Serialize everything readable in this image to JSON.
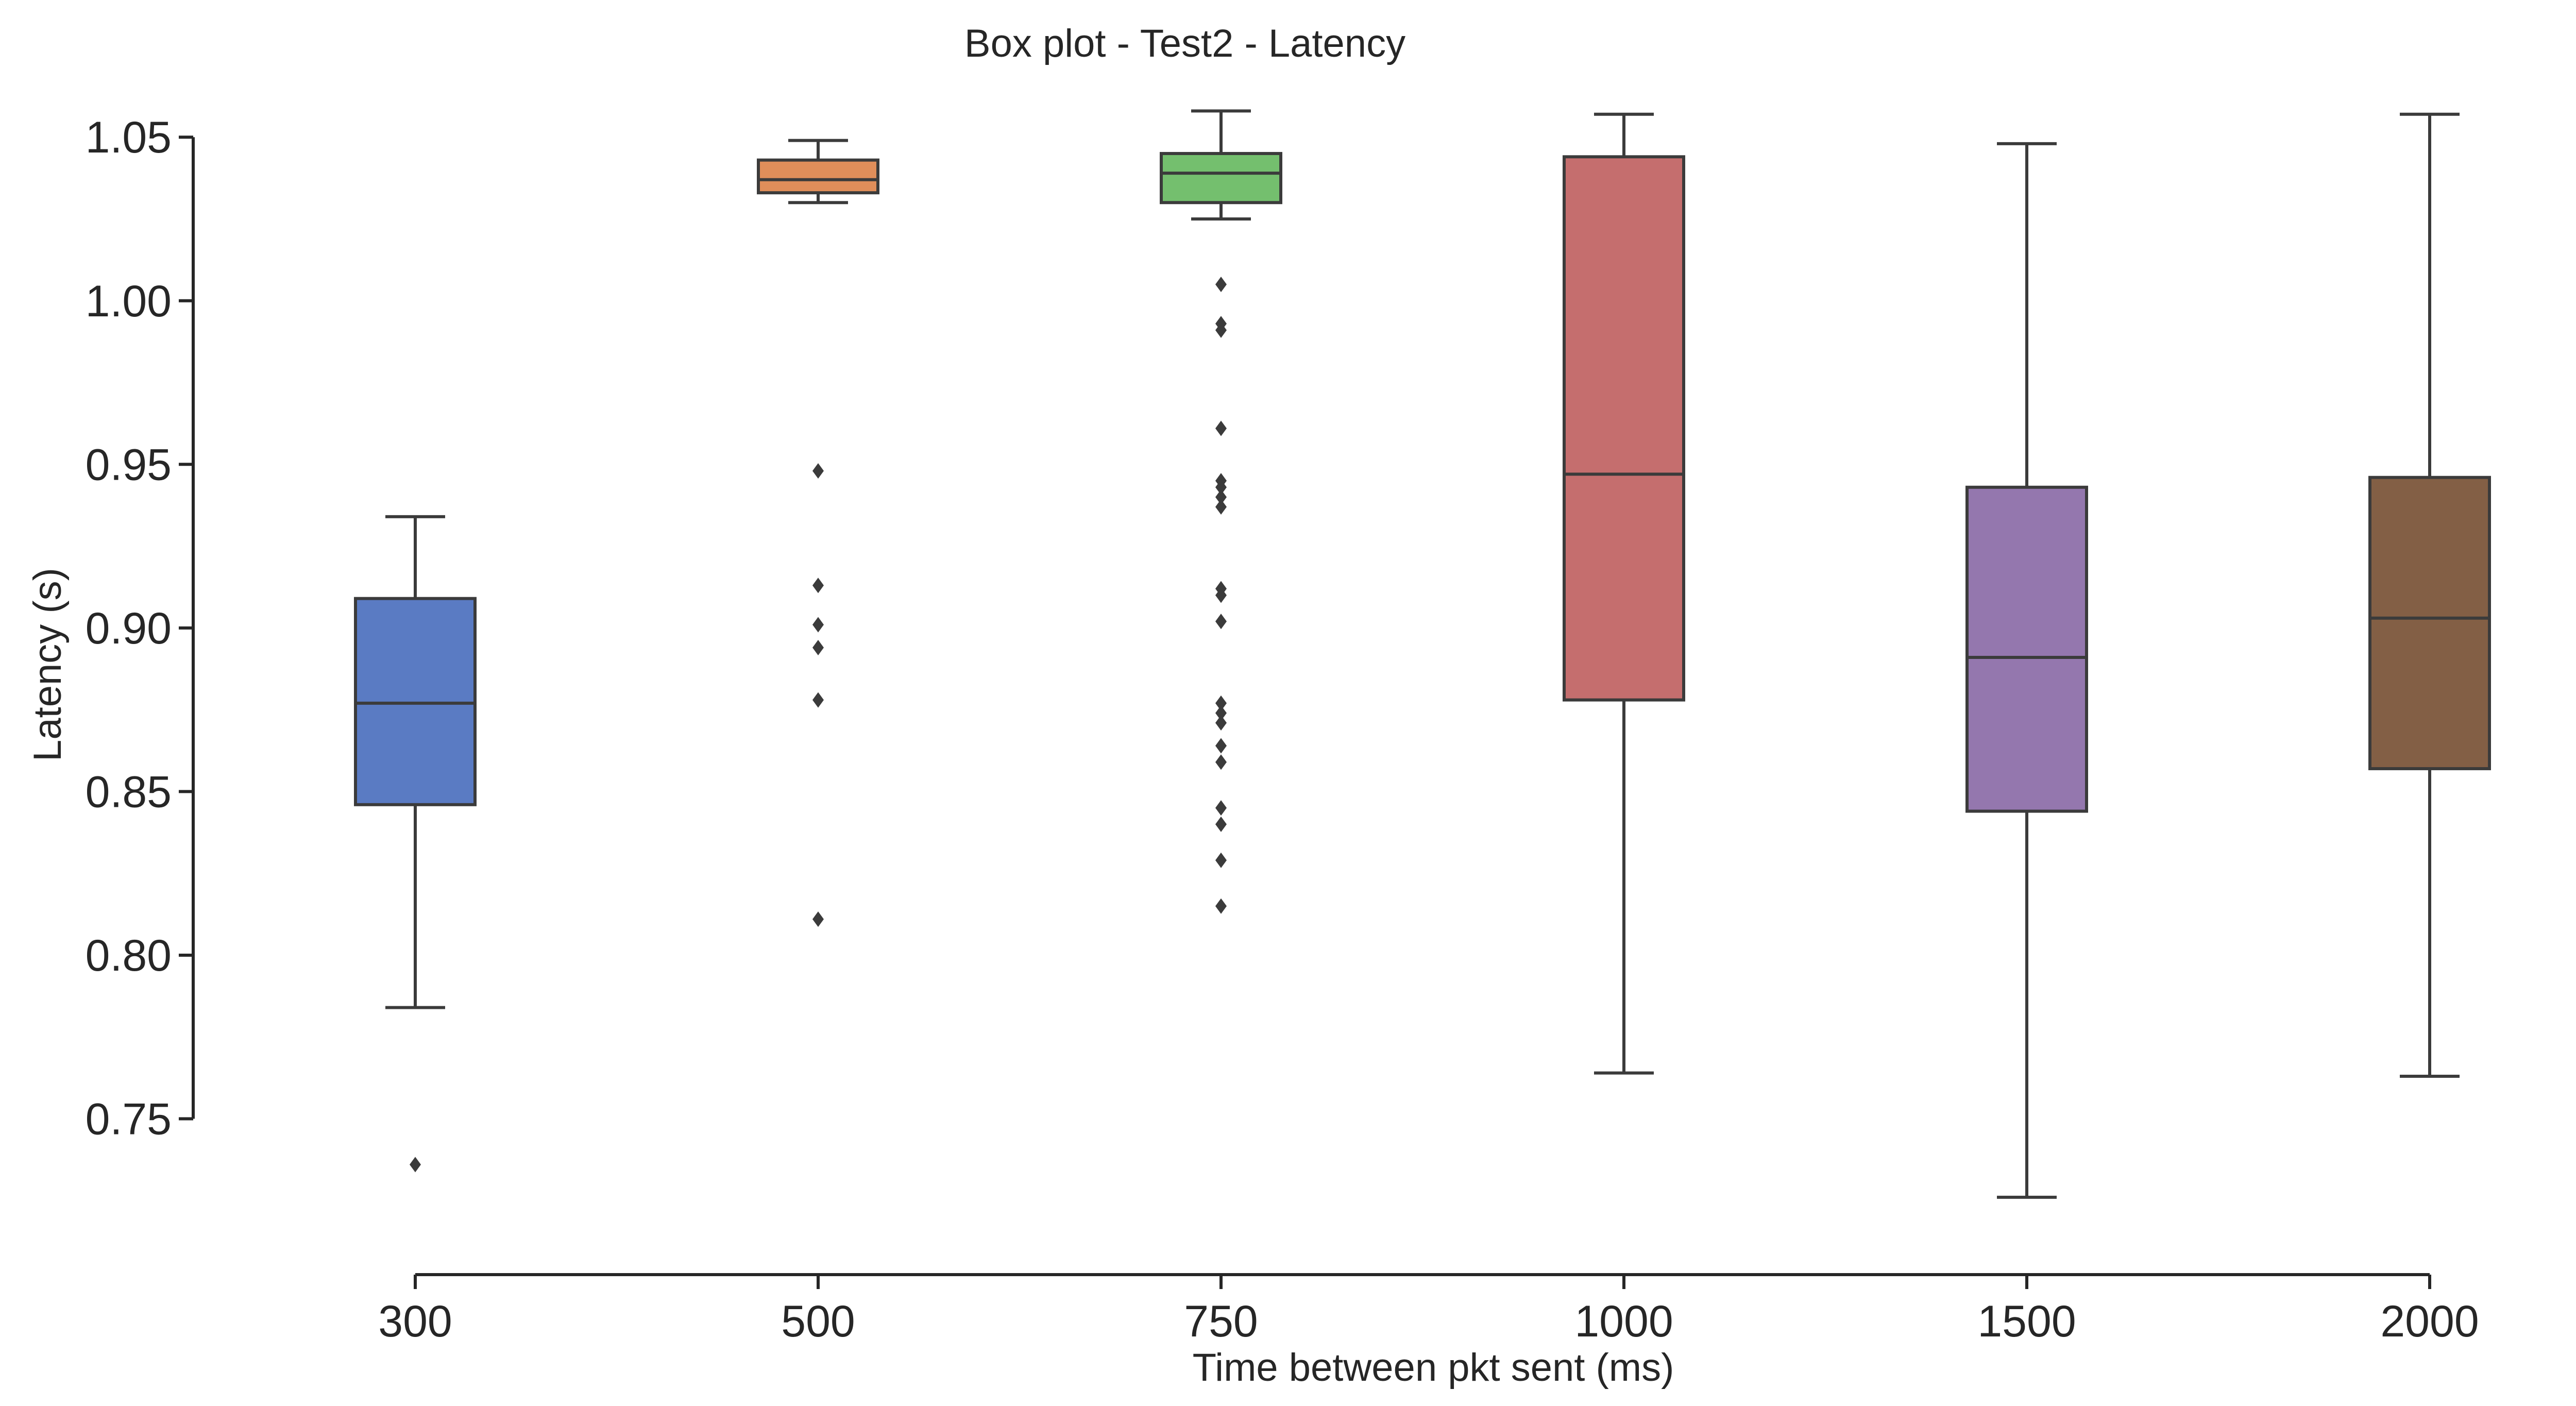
{
  "chart_data": {
    "type": "box",
    "title": "Box plot - Test2 - Latency",
    "xlabel": "Time between pkt sent (ms)",
    "ylabel": "Latency (s)",
    "categories": [
      "300",
      "500",
      "750",
      "1000",
      "1500",
      "2000"
    ],
    "yticks": [
      "0.75",
      "0.80",
      "0.85",
      "0.90",
      "0.95",
      "1.00",
      "1.05"
    ],
    "ytick_values": [
      0.75,
      0.8,
      0.85,
      0.9,
      0.95,
      1.0,
      1.05
    ],
    "ylim": [
      0.703,
      1.062
    ],
    "grid": false,
    "boxes": [
      {
        "category": "300",
        "color": "#5a7bc3",
        "whisker_low": 0.784,
        "q1": 0.846,
        "median": 0.877,
        "q3": 0.909,
        "whisker_high": 0.934,
        "outliers": [
          0.736
        ]
      },
      {
        "category": "500",
        "color": "#e08e5a",
        "whisker_low": 1.03,
        "q1": 1.033,
        "median": 1.037,
        "q3": 1.043,
        "whisker_high": 1.049,
        "outliers": [
          0.948,
          0.913,
          0.901,
          0.894,
          0.878,
          0.811
        ]
      },
      {
        "category": "750",
        "color": "#74bf6e",
        "whisker_low": 1.025,
        "q1": 1.03,
        "median": 1.039,
        "q3": 1.045,
        "whisker_high": 1.058,
        "outliers": [
          1.005,
          0.993,
          0.991,
          0.961,
          0.945,
          0.943,
          0.94,
          0.937,
          0.912,
          0.91,
          0.902,
          0.877,
          0.874,
          0.871,
          0.864,
          0.859,
          0.845,
          0.84,
          0.829,
          0.815
        ]
      },
      {
        "category": "1000",
        "color": "#c56e6e",
        "whisker_low": 0.764,
        "q1": 0.878,
        "median": 0.947,
        "q3": 1.044,
        "whisker_high": 1.057,
        "outliers": []
      },
      {
        "category": "1500",
        "color": "#9477ae",
        "whisker_low": 0.726,
        "q1": 0.844,
        "median": 0.891,
        "q3": 0.943,
        "whisker_high": 1.048,
        "outliers": []
      },
      {
        "category": "2000",
        "color": "#835f45",
        "whisker_low": 0.763,
        "q1": 0.857,
        "median": 0.903,
        "q3": 0.946,
        "whisker_high": 1.057,
        "outliers": []
      }
    ],
    "line_color": "#3b3b3b",
    "axis_color": "#262626"
  }
}
